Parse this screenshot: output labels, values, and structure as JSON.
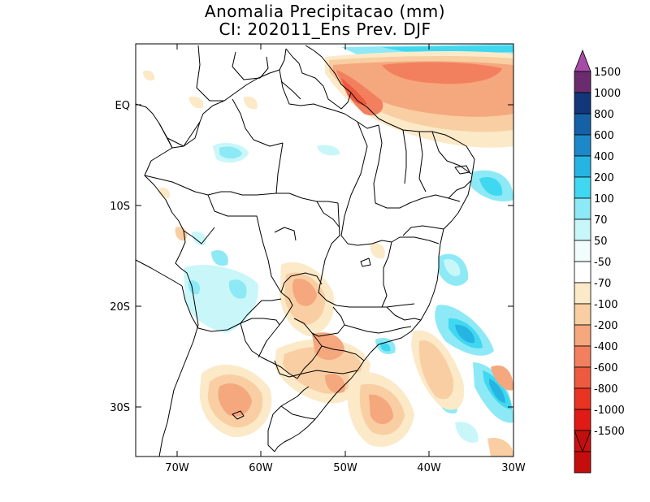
{
  "title": {
    "line1": "Anomalia Precipitacao (mm)",
    "line2": "CI: 202011_Ens Prev. DJF"
  },
  "axes": {
    "lat_labels": [
      "EQ",
      "10S",
      "20S",
      "30S"
    ],
    "lon_labels": [
      "70W",
      "60W",
      "50W",
      "40W",
      "30W"
    ],
    "lon_range": [
      -75,
      -30
    ],
    "lat_range": [
      -35,
      5
    ]
  },
  "colorbar": {
    "levels": [
      "1500",
      "1000",
      "800",
      "600",
      "400",
      "200",
      "100",
      "70",
      "50",
      "-50",
      "-70",
      "-100",
      "-200",
      "-400",
      "-600",
      "-800",
      "-1000",
      "-1500"
    ],
    "colors": [
      "#6a2c6e",
      "#12377a",
      "#1660a6",
      "#1d88c9",
      "#26b4e3",
      "#3fd8f0",
      "#8de9f5",
      "#c9f7f9",
      "#f1fdfd",
      "#ffffff",
      "#fbe9c8",
      "#f8cea2",
      "#f5a77e",
      "#f2805f",
      "#ed5a3f",
      "#ea3423",
      "#e01a14",
      "#cc1111",
      "#c60d0d"
    ],
    "top_arrow_color": "#a64ca6",
    "bottom_arrow_color": "#c0100e"
  }
}
